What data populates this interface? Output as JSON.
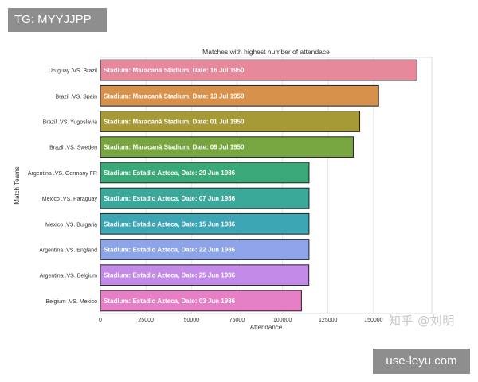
{
  "overlays": {
    "top_left_tag": "TG: MYYJJPP",
    "bottom_right_tag": "use-leyu.com",
    "watermark": "知乎 @刘明"
  },
  "chart_data": {
    "type": "bar",
    "orientation": "horizontal",
    "title": "Matches with highest number of attendace",
    "xlabel": "Attendance",
    "ylabel": "Match Teams",
    "xlim": [
      0,
      182000
    ],
    "xticks": [
      0,
      25000,
      50000,
      75000,
      100000,
      125000,
      150000
    ],
    "xtick_labels": [
      "0",
      "25000",
      "50000",
      "75000",
      "100000",
      "125000",
      "150000"
    ],
    "grid": "vertical",
    "categories": [
      "Uruguay .VS. Brazil",
      "Brazil .VS. Spain",
      "Brazil .VS. Yugoslavia",
      "Brazil .VS. Sweden",
      "Argentina .VS. Germany FR",
      "Mexico .VS. Paraguay",
      "Mexico .VS. Bulgaria",
      "Argentina .VS. England",
      "Argentina .VS. Belgium",
      "Belgium .VS. Mexico"
    ],
    "values": [
      173850,
      152772,
      142429,
      138886,
      114600,
      114600,
      114580,
      114580,
      114500,
      110420
    ],
    "bar_labels": [
      "Stadium: Maracanã Stadium, Date: 16 Jul 1950",
      "Stadium: Maracanã Stadium, Date: 13 Jul 1950",
      "Stadium: Maracanã Stadium, Date: 01 Jul 1950",
      "Stadium: Maracanã Stadium, Date: 09 Jul 1950",
      "Stadium: Estadio Azteca, Date: 29 Jun 1986",
      "Stadium: Estadio Azteca, Date: 07 Jun 1986",
      "Stadium: Estadio Azteca, Date: 15 Jun 1986",
      "Stadium: Estadio Azteca, Date: 22 Jun 1986",
      "Stadium: Estadio Azteca, Date: 25 Jun 1986",
      "Stadium: Estadio Azteca, Date: 03 Jun 1986"
    ],
    "colors": [
      "#e8899b",
      "#d8914a",
      "#a59a36",
      "#77a640",
      "#3aa877",
      "#3ca899",
      "#3ea5b4",
      "#8da5e8",
      "#c48ae8",
      "#e67fc6"
    ]
  }
}
